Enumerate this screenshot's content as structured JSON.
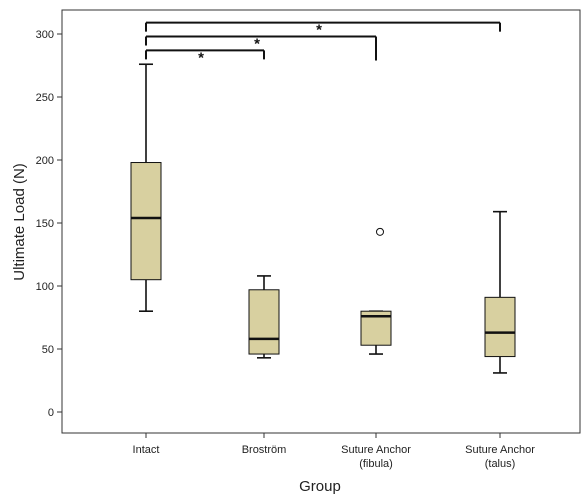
{
  "chart_data": {
    "type": "boxplot",
    "xlabel": "Group",
    "ylabel": "Ultimate Load (N)",
    "ylim": [
      -20,
      320
    ],
    "yticks": [
      0,
      50,
      100,
      150,
      200,
      250,
      300
    ],
    "categories": [
      [
        "Intact"
      ],
      [
        "Broström"
      ],
      [
        "Suture Anchor",
        "(fibula)"
      ],
      [
        "Suture Anchor",
        "(talus)"
      ]
    ],
    "boxes": [
      {
        "whisker_low": 80,
        "q1": 105,
        "median": 154,
        "q3": 198,
        "whisker_high": 276,
        "outliers": []
      },
      {
        "whisker_low": 43,
        "q1": 46,
        "median": 58,
        "q3": 97,
        "whisker_high": 108,
        "outliers": []
      },
      {
        "whisker_low": 46,
        "q1": 53,
        "median": 76,
        "q3": 80,
        "whisker_high": 80,
        "outliers": [
          143
        ]
      },
      {
        "whisker_low": 31,
        "q1": 44,
        "median": 63,
        "q3": 91,
        "whisker_high": 159,
        "outliers": []
      }
    ],
    "significance": [
      {
        "from": 0,
        "to": 1,
        "y": 287,
        "label": "*"
      },
      {
        "from": 0,
        "to": 2,
        "y": 298,
        "label": "*"
      },
      {
        "from": 0,
        "to": 3,
        "y": 309,
        "label": "*"
      }
    ],
    "grid": false,
    "colors": {
      "box_fill": "#d8d0a0",
      "line": "#111111",
      "axis": "#333333"
    }
  }
}
